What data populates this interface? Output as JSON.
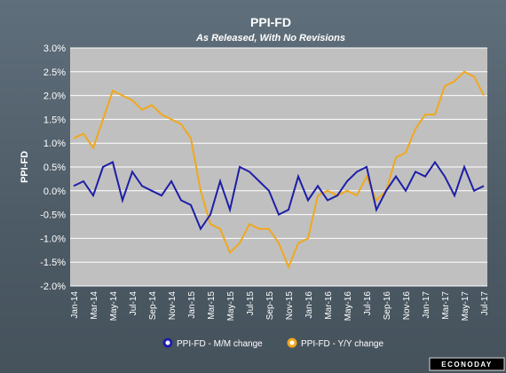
{
  "chart_data": {
    "type": "line",
    "title": "PPI-FD",
    "subtitle": "As Released, With No Revisions",
    "ylabel": "PPI-FD",
    "xlabel": "",
    "ylim": [
      -2.0,
      3.0
    ],
    "y_ticks": [
      "3.0%",
      "2.5%",
      "2.0%",
      "1.5%",
      "1.0%",
      "0.5%",
      "0.0%",
      "-0.5%",
      "-1.0%",
      "-1.5%",
      "-2.0%"
    ],
    "x_ticks": [
      "Jan-14",
      "Mar-14",
      "May-14",
      "Jul-14",
      "Sep-14",
      "Nov-14",
      "Jan-15",
      "Mar-15",
      "May-15",
      "Jul-15",
      "Sep-15",
      "Nov-15",
      "Jan-16",
      "Mar-16",
      "May-16",
      "Jul-16",
      "Sep-16",
      "Nov-16",
      "Jan-17",
      "Mar-17",
      "May-17",
      "Jul-17"
    ],
    "grid": true,
    "legend_position": "bottom",
    "series": [
      {
        "name": "PPI-FD - M/M change",
        "color": "#1e1ea8",
        "values": [
          0.1,
          0.2,
          -0.1,
          0.5,
          0.6,
          -0.2,
          0.4,
          0.1,
          0.0,
          -0.1,
          0.2,
          -0.2,
          -0.3,
          -0.8,
          -0.5,
          0.2,
          -0.4,
          0.5,
          0.4,
          0.2,
          0.0,
          -0.5,
          -0.4,
          0.3,
          -0.2,
          0.1,
          -0.2,
          -0.1,
          0.2,
          0.4,
          0.5,
          -0.4,
          0.0,
          0.3,
          0.0,
          0.4,
          0.3,
          0.6,
          0.3,
          -0.1,
          0.5,
          0.0,
          0.1
        ]
      },
      {
        "name": "PPI-FD - Y/Y change",
        "color": "#f0a81e",
        "values": [
          1.1,
          1.2,
          0.9,
          1.5,
          2.1,
          2.0,
          1.9,
          1.7,
          1.8,
          1.6,
          1.5,
          1.4,
          1.1,
          0.0,
          -0.7,
          -0.8,
          -1.3,
          -1.1,
          -0.7,
          -0.8,
          -0.8,
          -1.1,
          -1.6,
          -1.1,
          -1.0,
          -0.1,
          0.0,
          -0.1,
          0.0,
          -0.1,
          0.3,
          -0.2,
          0.0,
          0.7,
          0.8,
          1.3,
          1.6,
          1.6,
          2.2,
          2.3,
          2.5,
          2.4,
          2.0
        ]
      }
    ]
  },
  "footer": {
    "logo_text": "ECONODAY"
  }
}
